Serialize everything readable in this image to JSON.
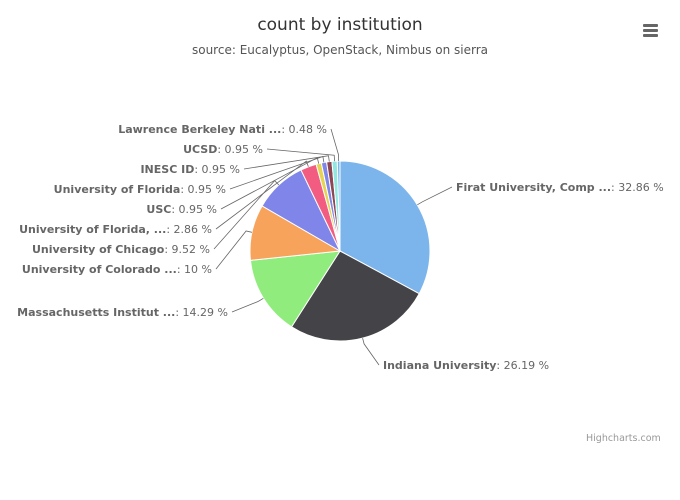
{
  "header": {
    "title": "count by institution",
    "subtitle": "source: Eucalyptus, OpenStack, Nimbus on sierra",
    "menu_icon": "hamburger-menu-icon"
  },
  "credits": "Highcharts.com",
  "chart_data": {
    "type": "pie",
    "title": "count by institution",
    "subtitle": "source: Eucalyptus, OpenStack, Nimbus on sierra",
    "slices": [
      {
        "label": "Firat University, Comp ...",
        "value": 32.86,
        "value_label": "32.86 %",
        "color": "#7cb5ec"
      },
      {
        "label": "Indiana University",
        "value": 26.19,
        "value_label": "26.19 %",
        "color": "#434348"
      },
      {
        "label": "Massachusetts Institut ...",
        "value": 14.29,
        "value_label": "14.29 %",
        "color": "#90ed7d"
      },
      {
        "label": "University of Colorado ...",
        "value": 10,
        "value_label": "10 %",
        "color": "#f7a35c"
      },
      {
        "label": "University of Chicago",
        "value": 9.52,
        "value_label": "9.52 %",
        "color": "#8085e9"
      },
      {
        "label": "University of Florida, ...",
        "value": 2.86,
        "value_label": "2.86 %",
        "color": "#f15c80"
      },
      {
        "label": "USC",
        "value": 0.95,
        "value_label": "0.95 %",
        "color": "#e4d354"
      },
      {
        "label": "University of Florida",
        "value": 0.95,
        "value_label": "0.95 %",
        "color": "#8085e8"
      },
      {
        "label": "INESC ID",
        "value": 0.95,
        "value_label": "0.95 %",
        "color": "#8d4653"
      },
      {
        "label": "UCSD",
        "value": 0.95,
        "value_label": "0.95 %",
        "color": "#91e8e1"
      },
      {
        "label": "Lawrence Berkeley Nati ...",
        "value": 0.48,
        "value_label": "0.48 %",
        "color": "#7cb5ec"
      }
    ]
  }
}
